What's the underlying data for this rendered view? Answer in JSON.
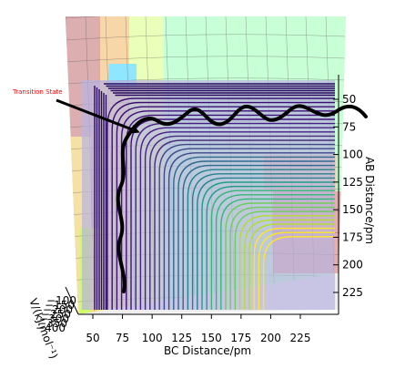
{
  "chart_data": {
    "type": "3d-surface-contour",
    "annotation": "Transition State",
    "annotation_color": "#ff0000",
    "xlabel": "BC Distance/pm",
    "ylabel": "AB Distance/pm",
    "zlabel": "V/(kJ.mol⁻¹)",
    "x_ticks": [
      {
        "value": 50,
        "label": "50"
      },
      {
        "value": 75,
        "label": "75"
      },
      {
        "value": 100,
        "label": "100"
      },
      {
        "value": 125,
        "label": "125"
      },
      {
        "value": 150,
        "label": "150"
      },
      {
        "value": 175,
        "label": "175"
      },
      {
        "value": 200,
        "label": "200"
      },
      {
        "value": 225,
        "label": "225"
      }
    ],
    "y_ticks": [
      {
        "value": 50,
        "label": "50"
      },
      {
        "value": 75,
        "label": "75"
      },
      {
        "value": 100,
        "label": "100"
      },
      {
        "value": 125,
        "label": "125"
      },
      {
        "value": 150,
        "label": "150"
      },
      {
        "value": 175,
        "label": "175"
      },
      {
        "value": 200,
        "label": "200"
      },
      {
        "value": 225,
        "label": "225"
      }
    ],
    "z_ticks": [
      {
        "value": -100,
        "label": "−100"
      },
      {
        "value": -150,
        "label": "−150"
      },
      {
        "value": -200,
        "label": "−200"
      },
      {
        "value": -250,
        "label": "−250"
      },
      {
        "value": -300,
        "label": "−300"
      },
      {
        "value": -350,
        "label": "−350"
      },
      {
        "value": -400,
        "label": "−400"
      }
    ],
    "xlim": [
      30,
      250
    ],
    "ylim": [
      30,
      250
    ],
    "colormap": "viridis-like contours over a rainbow surface",
    "trajectory_color": "#000000",
    "grid": true
  }
}
